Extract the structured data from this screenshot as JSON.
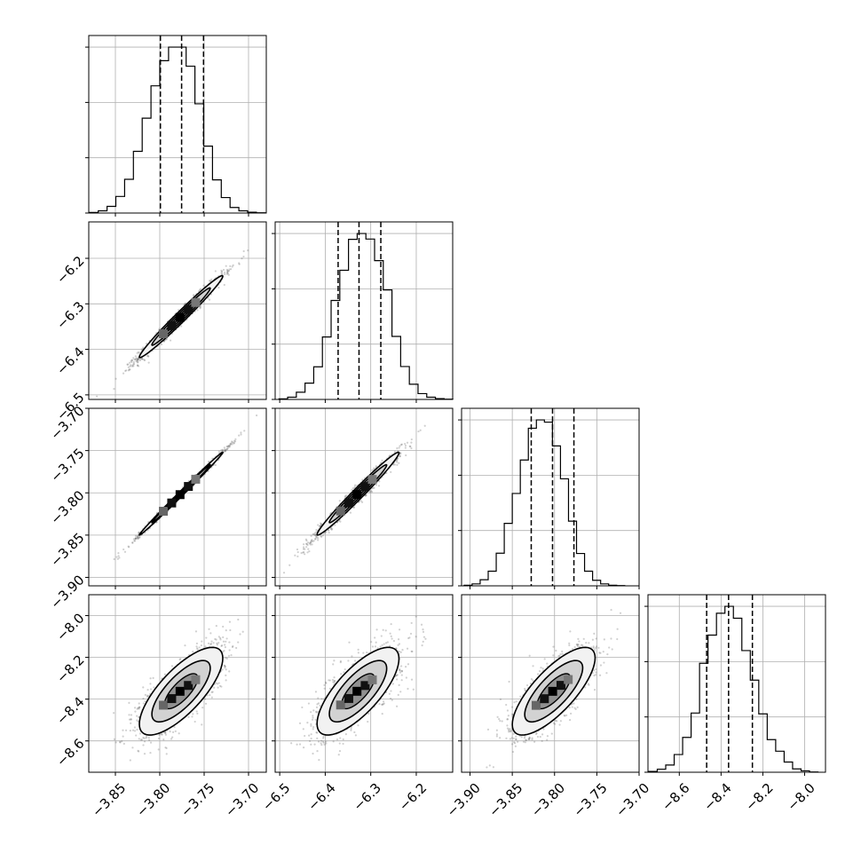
{
  "chart_data": {
    "type": "corner",
    "title": "",
    "grid": true,
    "parameters": [
      {
        "range": [
          -3.88,
          -3.68
        ],
        "ticks": [
          -3.85,
          -3.8,
          -3.75,
          -3.7
        ],
        "tick_labels": [
          "−3.85",
          "−3.80",
          "−3.75",
          "−3.70"
        ],
        "quantiles": [
          -3.7993,
          -3.7754,
          -3.7507
        ],
        "hist_edges_start": -3.8792,
        "hist_bin_width": 0.0099,
        "hist_counts": [
          0.2,
          0.8,
          2.4,
          6.0,
          12.2,
          22.3,
          34.3,
          46.0,
          55.1,
          60.0,
          60.0,
          53.1,
          39.5,
          24.2,
          12.0,
          5.6,
          2.0,
          0.8,
          0.3,
          0.1
        ]
      },
      {
        "range": [
          -6.51,
          -6.12
        ],
        "ticks": [
          -6.5,
          -6.4,
          -6.3,
          -6.2
        ],
        "tick_labels": [
          "−6.5",
          "−6.4",
          "−6.3",
          "−6.2"
        ],
        "quantiles": [
          -6.3717,
          -6.3258,
          -6.2779
        ],
        "hist_edges_start": -6.5017,
        "hist_bin_width": 0.0191,
        "hist_counts": [
          0.2,
          0.8,
          2.6,
          5.9,
          11.8,
          22.6,
          35.8,
          46.7,
          57.9,
          60.0,
          58.0,
          50.2,
          39.6,
          22.8,
          11.9,
          5.5,
          2.1,
          0.8,
          0.3,
          0.1
        ]
      },
      {
        "range": [
          -3.91,
          -3.7
        ],
        "ticks": [
          -3.9,
          -3.85,
          -3.8,
          -3.75,
          -3.7
        ],
        "tick_labels": [
          "−3.90",
          "−3.85",
          "−3.80",
          "−3.75",
          "−3.70"
        ],
        "quantiles": [
          -3.8276,
          -3.8024,
          -3.7771
        ],
        "hist_edges_start": -3.907,
        "hist_bin_width": 0.0095,
        "hist_counts": [
          0.2,
          0.7,
          2.2,
          5.3,
          11.8,
          22.6,
          33.4,
          45.5,
          57.0,
          60.0,
          59.2,
          50.6,
          38.7,
          23.4,
          11.7,
          5.3,
          2.0,
          0.7,
          0.2,
          0.1
        ]
      },
      {
        "range": [
          -8.75,
          -7.9
        ],
        "ticks": [
          -8.6,
          -8.4,
          -8.2,
          -8.0
        ],
        "tick_labels": [
          "−8.6",
          "−8.4",
          "−8.2",
          "−8.0"
        ],
        "quantiles": [
          -8.469,
          -8.364,
          -8.25
        ],
        "hist_edges_start": -8.746,
        "hist_bin_width": 0.0405,
        "hist_counts": [
          0.3,
          1.1,
          2.6,
          6.4,
          12.6,
          21.4,
          39.4,
          49.6,
          57.5,
          60.0,
          55.7,
          44.0,
          33.3,
          21.1,
          11.8,
          7.6,
          3.7,
          1.2,
          0.5,
          0.1
        ]
      }
    ],
    "joint": [
      {
        "x": 0,
        "y": 1,
        "center": [
          -3.776,
          -6.328
        ],
        "sigma": [
          0.0235,
          0.045
        ],
        "rho": 0.985
      },
      {
        "x": 0,
        "y": 2,
        "center": [
          -3.776,
          -3.801
        ],
        "sigma": [
          0.0235,
          0.0245
        ],
        "rho": 0.997
      },
      {
        "x": 1,
        "y": 2,
        "center": [
          -6.328,
          -3.801
        ],
        "sigma": [
          0.045,
          0.0245
        ],
        "rho": 0.984
      },
      {
        "x": 0,
        "y": 3,
        "center": [
          -3.776,
          -8.362
        ],
        "sigma": [
          0.0235,
          0.105
        ],
        "rho": 0.75
      },
      {
        "x": 1,
        "y": 3,
        "center": [
          -6.328,
          -8.362
        ],
        "sigma": [
          0.045,
          0.105
        ],
        "rho": 0.74
      },
      {
        "x": 2,
        "y": 3,
        "center": [
          -3.801,
          -8.362
        ],
        "sigma": [
          0.0245,
          0.105
        ],
        "rho": 0.76
      }
    ]
  }
}
